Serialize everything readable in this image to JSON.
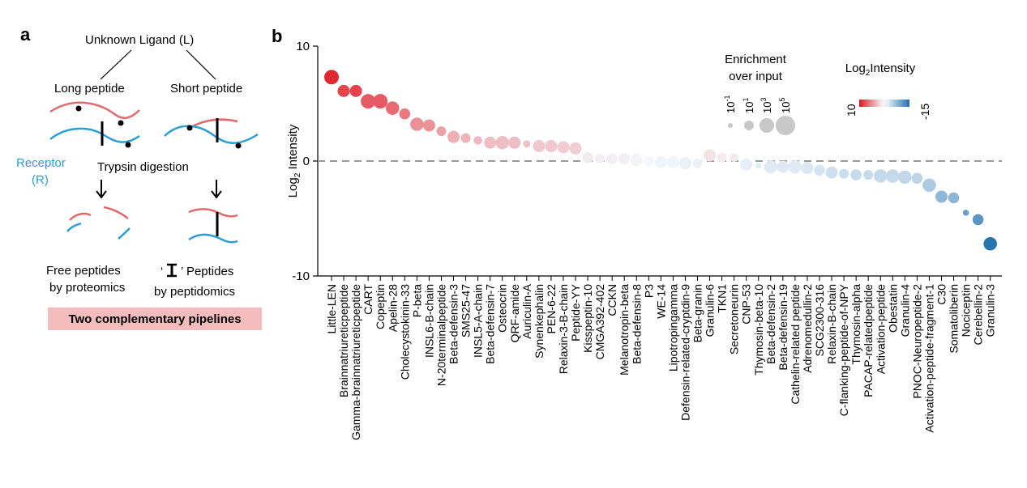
{
  "panel_a": {
    "letter": "a",
    "ligand": "Unknown Ligand (L)",
    "long": "Long peptide",
    "short": "Short peptide",
    "receptor": "Receptor",
    "receptor_abbr": "(R)",
    "digestion": "Trypsin digestion",
    "free1": "Free peptides",
    "free2": "by proteomics",
    "pep_q1": "‘",
    "pep_q2": "’ Peptides",
    "pep2": "by peptidomics",
    "banner": "Two complementary pipelines",
    "colors": {
      "red": "#e06b6b",
      "blue": "#2a9fd6",
      "banner": "#f4bcbc"
    }
  },
  "panel_b": {
    "letter": "b",
    "enrich_title1": "Enrichment",
    "enrich_title2": "over input",
    "size_base": "10",
    "size_exps": [
      "-1",
      "1",
      "3",
      "5"
    ],
    "intensity_title_pre": "Log",
    "intensity_title_sub": "2",
    "intensity_title_post": "Intensity",
    "colorbar_min": "10",
    "colorbar_max": "-15"
  },
  "chart_data": {
    "type": "scatter",
    "ylabel_pre": "Log",
    "ylabel_sub": "2",
    "ylabel_post": " Intensity",
    "ylim": [
      -10,
      10
    ],
    "yticks": [
      10,
      0,
      -10
    ],
    "reference_line": 0,
    "categories": [
      "Little-LEN",
      "Brainnatriureticpeptide",
      "Gamma-brainnatriureticpeptide",
      "CART",
      "Copeptin",
      "Apelin-28",
      "Cholecystokinin-33",
      "P-beta",
      "INSL6-B-chain",
      "N-20terminalpeptide",
      "Beta-defensin-3",
      "SMS25-47",
      "INSL5-A-chain",
      "Beta-defensin-7",
      "Osteocrin",
      "QRF-amide",
      "Auriculin-A",
      "Synenkephalin",
      "PEN-6-22",
      "Relaxin-3-B-chain",
      "Peptide-YY",
      "Kisspeptin-10",
      "CMGA392-402",
      "CCKN",
      "Melanotropin-beta",
      "Beta-defensin-8",
      "P3",
      "WE-14",
      "Lipotropingamma",
      "Defensin-related-cryptdin-9",
      "Beta-granin",
      "Granulin-6",
      "TKN1",
      "Secretoneurin",
      "CNP-53",
      "Thymosin-beta-10",
      "Beta-defensin-2",
      "Beta-defensin-19",
      "Cathelin-related peptide",
      "Adrenomedullin-2",
      "SCG2300-316",
      "Relaxin-B-chain",
      "C-flanking-peptide-of-NPY",
      "Thymosin-alpha",
      "PACAP-relatedpeptide",
      "Activation-peptide",
      "Obestatin",
      "Granulin-4",
      "PNOC-Neuropeptide-2",
      "Activation-peptide-fragment-1",
      "C30",
      "Somatoliberin",
      "Nociceptin",
      "Cerebellin-2",
      "Granulin-3"
    ],
    "values": [
      7.3,
      6.1,
      6.1,
      5.2,
      5.2,
      4.6,
      4.1,
      3.2,
      3.1,
      2.6,
      2.1,
      2.0,
      1.8,
      1.6,
      1.6,
      1.6,
      1.5,
      1.3,
      1.3,
      1.2,
      1.1,
      0.3,
      0.2,
      0.2,
      0.2,
      0.1,
      0.0,
      -0.1,
      -0.1,
      -0.2,
      -0.2,
      0.5,
      0.3,
      0.3,
      -0.3,
      -0.4,
      -0.5,
      -0.5,
      -0.5,
      -0.6,
      -0.8,
      -1.0,
      -1.1,
      -1.2,
      -1.2,
      -1.3,
      -1.3,
      -1.4,
      -1.5,
      -2.1,
      -3.1,
      -3.2,
      -4.5,
      -5.1,
      -7.2
    ],
    "enrichment_exponent": [
      3,
      2,
      2,
      3,
      3,
      2.5,
      1.5,
      2.5,
      2,
      1,
      2,
      1,
      0.5,
      2,
      2.5,
      2,
      0,
      2,
      2,
      2,
      2,
      1.5,
      1,
      1.5,
      1.5,
      2,
      1,
      2,
      2,
      2,
      1,
      2,
      1,
      0.5,
      2,
      -0.5,
      2.5,
      2,
      2.5,
      2,
      1.5,
      2,
      1,
      1.5,
      1,
      2.5,
      2.5,
      2.5,
      1.5,
      2.5,
      2,
      1.5,
      -0.5,
      1.5,
      2.5
    ],
    "size_legend_exponents": [
      -1,
      1,
      3,
      5
    ],
    "color_scale": {
      "min": -15,
      "max": 10,
      "low_color": "#1f6fad",
      "mid_color": "#f4f8fc",
      "high_color": "#e0161f",
      "legend_min": 10,
      "legend_max": -15
    }
  }
}
